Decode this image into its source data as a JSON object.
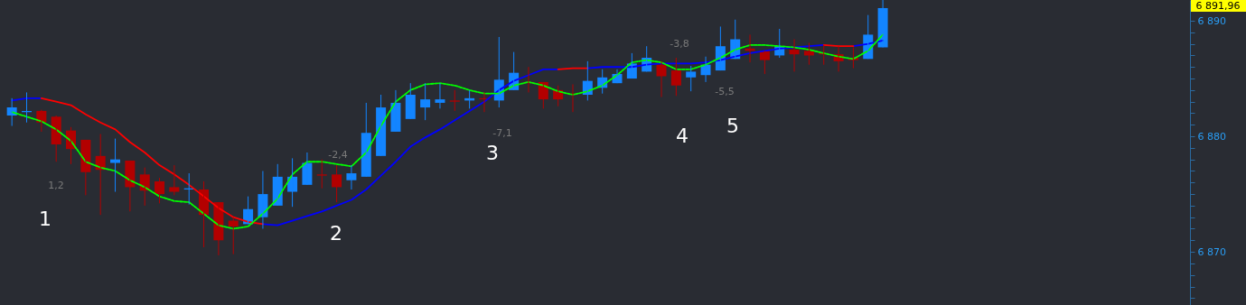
{
  "chart_data": {
    "type": "candlestick",
    "categories": [
      null,
      null,
      null,
      null,
      null,
      null,
      null,
      null,
      null,
      null,
      null,
      null,
      null,
      null,
      null,
      null,
      null,
      null,
      null,
      null,
      null,
      null,
      null,
      null,
      null,
      null,
      null,
      null,
      null,
      null,
      null,
      null,
      null,
      null,
      null,
      null,
      null,
      null,
      null,
      null,
      null,
      null,
      null,
      null,
      null,
      null,
      null,
      null,
      null,
      null,
      null,
      null,
      null,
      null,
      null,
      null,
      null,
      null,
      null,
      null,
      null,
      null,
      null,
      null,
      null,
      null,
      null,
      null,
      null,
      null,
      null,
      null,
      null,
      null,
      null,
      null,
      null,
      null,
      null,
      null
    ],
    "ohlc": [
      [
        6881.8,
        6883.3,
        6880.9,
        6882.5
      ],
      [
        6882.1,
        6883.8,
        6881.2,
        6882.2
      ],
      [
        6882.2,
        6882.3,
        6880.4,
        6881.2
      ],
      [
        6881.7,
        6881.8,
        6877.8,
        6879.3
      ],
      [
        6880.5,
        6880.8,
        6877.6,
        6878.9
      ],
      [
        6879.7,
        6879.7,
        6874.9,
        6876.9
      ],
      [
        6878.3,
        6880.2,
        6873.2,
        6877.1
      ],
      [
        6877.7,
        6879.8,
        6875.2,
        6878.0
      ],
      [
        6877.9,
        6877.9,
        6873.5,
        6875.6
      ],
      [
        6876.7,
        6877.3,
        6874.0,
        6875.3
      ],
      [
        6876.1,
        6876.4,
        6874.2,
        6875.0
      ],
      [
        6875.6,
        6877.5,
        6874.9,
        6875.2
      ],
      [
        6875.4,
        6876.8,
        6874.1,
        6875.5
      ],
      [
        6875.4,
        6876.1,
        6870.4,
        6873.2
      ],
      [
        6874.3,
        6874.3,
        6869.7,
        6871.0
      ],
      [
        6872.7,
        6873.0,
        6869.8,
        6872.2
      ],
      [
        6872.4,
        6874.8,
        6872.4,
        6873.7
      ],
      [
        6873.0,
        6877.0,
        6872.0,
        6875.0
      ],
      [
        6874.0,
        6877.6,
        6874.0,
        6876.5
      ],
      [
        6875.2,
        6878.1,
        6873.9,
        6876.5
      ],
      [
        6875.8,
        6878.6,
        6875.8,
        6877.7
      ],
      [
        6876.7,
        6878.0,
        6875.5,
        6876.6
      ],
      [
        6876.7,
        6877.5,
        6874.3,
        6875.6
      ],
      [
        6876.2,
        6877.5,
        6875.4,
        6876.8
      ],
      [
        6876.5,
        6882.9,
        6876.5,
        6880.3
      ],
      [
        6878.3,
        6883.6,
        6878.3,
        6882.5
      ],
      [
        6880.4,
        6884.0,
        6880.4,
        6882.9
      ],
      [
        6881.5,
        6884.6,
        6881.5,
        6883.6
      ],
      [
        6882.5,
        6884.6,
        6881.4,
        6883.2
      ],
      [
        6882.9,
        6884.6,
        6882.4,
        6883.2
      ],
      [
        6883.1,
        6884.0,
        6882.2,
        6883.0
      ],
      [
        6883.1,
        6884.0,
        6882.4,
        6883.3
      ],
      [
        6883.3,
        6883.8,
        6882.1,
        6883.2
      ],
      [
        6883.1,
        6888.6,
        6882.5,
        6884.9
      ],
      [
        6884.0,
        6887.3,
        6884.0,
        6885.5
      ],
      [
        6884.7,
        6886.0,
        6883.8,
        6884.6
      ],
      [
        6884.7,
        6884.7,
        6882.4,
        6883.2
      ],
      [
        6884.0,
        6884.4,
        6882.6,
        6883.2
      ],
      [
        6883.7,
        6884.5,
        6882.1,
        6883.6
      ],
      [
        6883.6,
        6886.5,
        6883.1,
        6884.8
      ],
      [
        6884.2,
        6885.8,
        6883.7,
        6885.1
      ],
      [
        6884.6,
        6885.8,
        6884.6,
        6885.4
      ],
      [
        6885.0,
        6887.2,
        6885.0,
        6886.3
      ],
      [
        6885.6,
        6887.8,
        6885.6,
        6886.8
      ],
      [
        6886.2,
        6886.5,
        6883.4,
        6885.2
      ],
      [
        6885.7,
        6886.8,
        6883.5,
        6884.4
      ],
      [
        6885.1,
        6886.1,
        6883.9,
        6885.6
      ],
      [
        6885.3,
        6886.9,
        6884.7,
        6886.2
      ],
      [
        6885.7,
        6889.5,
        6885.7,
        6887.8
      ],
      [
        6886.7,
        6890.1,
        6886.7,
        6888.4
      ],
      [
        6887.6,
        6888.8,
        6886.4,
        6887.4
      ],
      [
        6887.4,
        6887.4,
        6885.4,
        6886.6
      ],
      [
        6887.0,
        6889.3,
        6886.8,
        6887.8
      ],
      [
        6887.5,
        6888.4,
        6885.6,
        6887.1
      ],
      [
        6887.4,
        6888.1,
        6886.2,
        6887.0
      ],
      [
        6887.2,
        6887.9,
        6886.2,
        6887.1
      ],
      [
        6887.1,
        6887.8,
        6885.6,
        6886.5
      ],
      [
        6886.8,
        6887.7,
        6885.9,
        6886.6
      ],
      [
        6886.7,
        6890.5,
        6886.7,
        6888.8
      ],
      [
        6887.7,
        6891.8,
        6887.7,
        6891.1
      ],
      null,
      null,
      null,
      null,
      null,
      null,
      null,
      null,
      null,
      null,
      null,
      null,
      null,
      null,
      null,
      null,
      null,
      null,
      null,
      null
    ],
    "colors": [
      "#1385ff",
      "#1385ff",
      "#b30000",
      "#b30000",
      "#b30000",
      "#b30000",
      "#b30000",
      "#1385ff",
      "#b30000",
      "#b30000",
      "#b30000",
      "#b30000",
      "#1385ff",
      "#b30000",
      "#b30000",
      "#b30000",
      "#1385ff",
      "#1385ff",
      "#1385ff",
      "#1385ff",
      "#1385ff",
      "#b30000",
      "#b30000",
      "#1385ff",
      "#1385ff",
      "#1385ff",
      "#1385ff",
      "#1385ff",
      "#1385ff",
      "#1385ff",
      "#b30000",
      "#1385ff",
      "#b30000",
      "#1385ff",
      "#1385ff",
      "#b30000",
      "#b30000",
      "#b30000",
      "#b30000",
      "#1385ff",
      "#1385ff",
      "#1385ff",
      "#1385ff",
      "#1385ff",
      "#b30000",
      "#b30000",
      "#1385ff",
      "#1385ff",
      "#1385ff",
      "#1385ff",
      "#b30000",
      "#b30000",
      "#1385ff",
      "#b30000",
      "#b30000",
      "#b30000",
      "#b30000",
      "#b30000",
      "#1385ff",
      "#1385ff",
      null,
      null,
      null,
      null,
      null,
      null,
      null,
      null,
      null,
      null,
      null,
      null,
      null,
      null,
      null,
      null,
      null,
      null,
      null,
      null
    ],
    "series": [
      {
        "type": "line",
        "color": "#0000ff",
        "line_style": "solid",
        "values": [
          6883.1,
          6883.3,
          6883.3,
          null,
          null,
          null,
          null,
          null,
          null,
          null,
          null,
          null,
          null,
          null,
          null,
          null,
          null,
          6872.4,
          6872.3,
          6872.7,
          6873.1,
          6873.5,
          6874.0,
          6874.5,
          6875.4,
          6876.6,
          6877.8,
          6879.1,
          6879.9,
          6880.6,
          6881.4,
          6882.2,
          6883.0,
          6884.0,
          6884.8,
          6885.3,
          6885.8,
          6885.8,
          null,
          6885.9,
          6886.0,
          6886.0,
          6886.0,
          6886.2,
          6886.3,
          6886.3,
          6886.3,
          6886.4,
          6886.6,
          6886.9,
          6887.2,
          6887.4,
          6887.6,
          6887.7,
          6887.8,
          6887.9,
          null,
          6887.8,
          6888.0,
          6888.3,
          null,
          null,
          null,
          null,
          null,
          null,
          null,
          null,
          null,
          null,
          null,
          null,
          null,
          null,
          null,
          null,
          null,
          null,
          null,
          null
        ]
      },
      {
        "type": "line",
        "color": "#ff0000",
        "line_style": "solid",
        "values": [
          null,
          null,
          6883.3,
          6883.0,
          6882.7,
          6881.9,
          6881.2,
          6880.6,
          6879.5,
          6878.6,
          6877.5,
          6876.7,
          6875.8,
          6874.8,
          6873.8,
          6873.0,
          6872.6,
          6872.4,
          null,
          null,
          null,
          null,
          null,
          null,
          null,
          null,
          null,
          null,
          null,
          null,
          null,
          null,
          null,
          null,
          null,
          null,
          null,
          6885.8,
          6885.9,
          6885.9,
          null,
          null,
          null,
          null,
          null,
          null,
          null,
          null,
          null,
          null,
          null,
          null,
          null,
          null,
          null,
          6887.9,
          6887.8,
          6887.8,
          null,
          null,
          null,
          null,
          null,
          null,
          null,
          null,
          null,
          null,
          null,
          null,
          null,
          null,
          null,
          null,
          null,
          null,
          null,
          null,
          null,
          null
        ]
      },
      {
        "type": "line",
        "color": "#00ff00",
        "line_style": "dashed",
        "values": [
          6882.1,
          6881.7,
          6881.3,
          6880.6,
          6879.6,
          6877.8,
          6877.3,
          6877.0,
          6876.2,
          6875.6,
          6874.8,
          6874.4,
          6874.3,
          6873.3,
          6872.3,
          6872.0,
          6872.2,
          6873.3,
          6874.6,
          6876.7,
          6877.8,
          6877.8,
          6877.6,
          6877.4,
          6878.6,
          6880.9,
          6883.0,
          6884.0,
          6884.5,
          6884.6,
          6884.4,
          6884.0,
          6883.7,
          6883.7,
          6884.4,
          6884.7,
          6884.4,
          6883.9,
          6883.6,
          6883.9,
          6884.4,
          6885.3,
          6886.4,
          6886.6,
          6886.4,
          6885.8,
          6885.8,
          6886.2,
          6886.8,
          6887.5,
          6887.9,
          6887.9,
          6887.8,
          6887.7,
          6887.5,
          6887.2,
          6886.9,
          6886.7,
          6887.4,
          6888.8,
          null,
          null,
          null,
          null,
          null,
          null,
          null,
          null,
          null,
          null,
          null,
          null,
          null,
          null,
          null,
          null,
          null,
          null,
          null,
          null
        ]
      }
    ],
    "ylim": [
      6865.4,
      6891.8
    ],
    "yticks": [
      {
        "value": 6866,
        "label": null
      },
      {
        "value": 6867,
        "label": null
      },
      {
        "value": 6868,
        "label": null
      },
      {
        "value": 6869,
        "label": null
      },
      {
        "value": 6870,
        "label": "6 870"
      },
      {
        "value": 6871,
        "label": null
      },
      {
        "value": 6872,
        "label": null
      },
      {
        "value": 6873,
        "label": null
      },
      {
        "value": 6874,
        "label": null
      },
      {
        "value": 6875,
        "label": null
      },
      {
        "value": 6876,
        "label": null
      },
      {
        "value": 6877,
        "label": null
      },
      {
        "value": 6878,
        "label": null
      },
      {
        "value": 6879,
        "label": null
      },
      {
        "value": 6880,
        "label": "6 880"
      },
      {
        "value": 6881,
        "label": null
      },
      {
        "value": 6882,
        "label": null
      },
      {
        "value": 6883,
        "label": null
      },
      {
        "value": 6884,
        "label": null
      },
      {
        "value": 6885,
        "label": null
      },
      {
        "value": 6886,
        "label": null
      },
      {
        "value": 6887,
        "label": null
      },
      {
        "value": 6888,
        "label": null
      },
      {
        "value": 6889,
        "label": null
      },
      {
        "value": 6890,
        "label": "6 890"
      },
      {
        "value": 6891,
        "label": null
      }
    ],
    "annotations": [
      "1,2",
      "-2,4",
      "-7,1",
      "-3,8",
      "-5,5",
      "1",
      "2",
      "3",
      "4",
      "5",
      "6 891,96"
    ],
    "grid": false
  }
}
